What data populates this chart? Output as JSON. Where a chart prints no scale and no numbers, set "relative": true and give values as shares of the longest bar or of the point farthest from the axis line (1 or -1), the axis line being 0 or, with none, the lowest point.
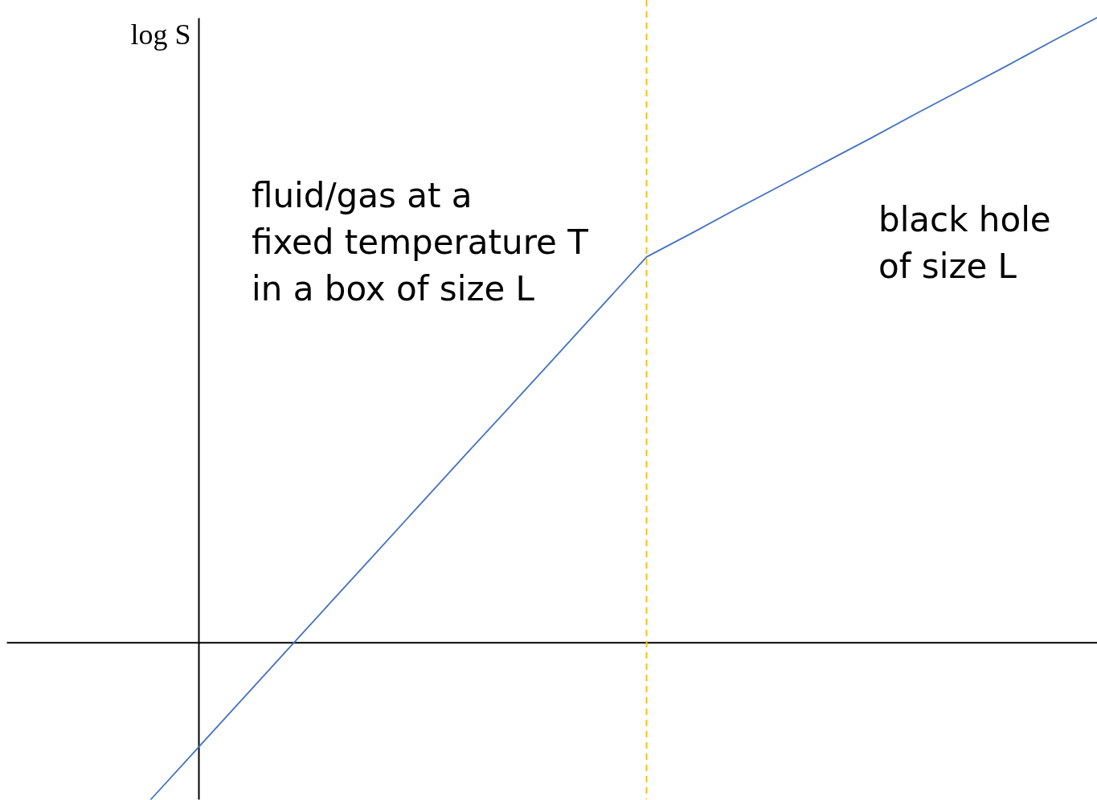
{
  "chart_data": {
    "type": "line",
    "ylabel": "log S",
    "relative": true,
    "line_style": "solid",
    "categories": [
      null,
      null,
      null,
      null,
      null,
      null,
      null,
      null,
      null,
      null,
      null,
      null,
      null,
      null,
      null,
      null,
      null,
      null,
      null,
      null,
      null,
      null
    ],
    "series": [
      {
        "color": "#4472c4",
        "values": [
          -0.251,
          -0.172,
          -0.093,
          -0.014,
          0.065,
          0.144,
          0.223,
          0.302,
          0.38,
          0.459,
          0.538,
          0.617,
          0.655,
          0.694,
          0.732,
          0.77,
          0.808,
          0.847,
          0.885,
          0.923,
          0.962,
          1
        ]
      }
    ],
    "annotations": [
      "fluid/gas at a\nfixed temperature T\nin a box of size L",
      "black hole\nof size L"
    ]
  }
}
